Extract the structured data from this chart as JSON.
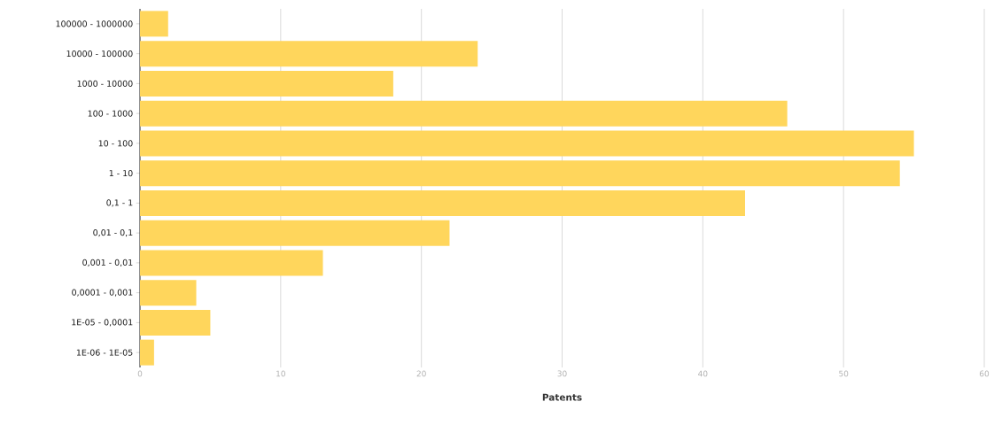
{
  "chart_data": {
    "type": "bar",
    "orientation": "horizontal",
    "xlabel": "Patents",
    "categories": [
      "100000 - 1000000",
      "10000 - 100000",
      "1000 - 10000",
      "100 - 1000",
      "10 - 100",
      "1 - 10",
      "0,1 - 1",
      "0,01 - 0,1",
      "0,001 - 0,01",
      "0,0001 - 0,001",
      "1E-05 - 0,0001",
      "1E-06 - 1E-05"
    ],
    "values": [
      2,
      24,
      18,
      46,
      55,
      54,
      43,
      22,
      13,
      4,
      5,
      1
    ],
    "color": "#ffd65c",
    "xlim": [
      0,
      60
    ],
    "xticks": [
      0,
      10,
      20,
      30,
      40,
      50,
      60
    ],
    "grid": "x"
  }
}
